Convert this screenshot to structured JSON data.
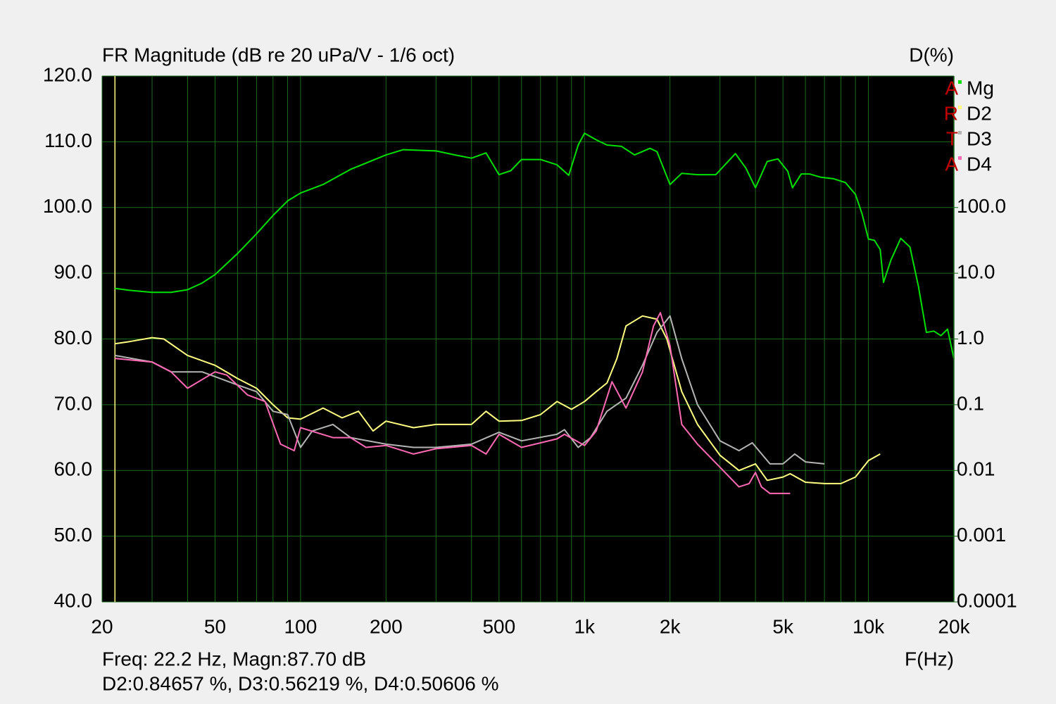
{
  "chart_data": {
    "type": "line",
    "title": "FR Magnitude (dB re 20 uPa/V - 1/6 oct)",
    "y2_label": "D(%)",
    "x_label": "F(Hz)",
    "watermark": "ARTA",
    "annotations": [
      "Freq: 22.2 Hz, Magn:87.70 dB",
      "D2:0.84657 %, D3:0.56219 %, D4:0.50606 %"
    ],
    "cursor_x": 22.2,
    "cursor_color": "#ffff80",
    "xlog": true,
    "y2log": true,
    "grid": true,
    "grid_color": "#1c6b1c",
    "legend": "top-right",
    "xlim": [
      20,
      20000
    ],
    "xticks": [
      20,
      50,
      100,
      200,
      500,
      {
        "value": 1000,
        "label": "1k"
      },
      {
        "value": 2000,
        "label": "2k"
      },
      {
        "value": 5000,
        "label": "5k"
      },
      {
        "value": 10000,
        "label": "10k"
      },
      {
        "value": 20000,
        "label": "20k"
      }
    ],
    "xminor": [
      30,
      40,
      60,
      70,
      80,
      90,
      300,
      400,
      600,
      700,
      800,
      900,
      3000,
      4000,
      6000,
      7000,
      8000,
      9000
    ],
    "ylim": [
      40,
      120
    ],
    "yticks": [
      {
        "value": 40,
        "label": "40.0"
      },
      {
        "value": 50,
        "label": "50.0"
      },
      {
        "value": 60,
        "label": "60.0"
      },
      {
        "value": 70,
        "label": "70.0"
      },
      {
        "value": 80,
        "label": "80.0"
      },
      {
        "value": 90,
        "label": "90.0"
      },
      {
        "value": 100,
        "label": "100.0"
      },
      {
        "value": 110,
        "label": "110.0"
      },
      {
        "value": 120,
        "label": "120.0"
      }
    ],
    "y2lim": [
      0.0001,
      10000
    ],
    "y2ticks": [
      0.0001,
      0.001,
      0.01,
      0.1,
      {
        "value": 1,
        "label": "1.0"
      },
      {
        "value": 10,
        "label": "10.0"
      },
      {
        "value": 100,
        "label": "100.0"
      }
    ],
    "series": [
      {
        "name": "Mg",
        "color": "#00e000",
        "x": [
          22.2,
          25,
          30,
          35,
          40,
          45,
          50,
          60,
          70,
          80,
          90,
          100,
          120,
          150,
          200,
          230,
          300,
          350,
          400,
          450,
          500,
          550,
          600,
          700,
          800,
          880,
          950,
          1000,
          1100,
          1200,
          1350,
          1500,
          1700,
          1800,
          2000,
          2200,
          2500,
          2900,
          3400,
          3700,
          4000,
          4400,
          4800,
          5200,
          5400,
          5800,
          6200,
          6800,
          7500,
          8300,
          9000,
          9500,
          10000,
          10500,
          11000,
          11300,
          12000,
          13000,
          14000,
          15000,
          16000,
          17000,
          18000,
          19000,
          20000
        ],
        "values": [
          87.7,
          87.4,
          87.1,
          87.1,
          87.5,
          88.5,
          89.8,
          93,
          96,
          98.8,
          101,
          102.2,
          103.5,
          105.8,
          108.0,
          108.8,
          108.6,
          108,
          107.5,
          108.3,
          105,
          105.6,
          107.3,
          107.3,
          106.5,
          104.9,
          109.5,
          111.3,
          110.3,
          109.5,
          109.3,
          108,
          109,
          108.5,
          103.5,
          105.2,
          105,
          105,
          108.2,
          106,
          103,
          107,
          107.4,
          105.5,
          103,
          105.1,
          105.1,
          104.6,
          104.4,
          103.8,
          102,
          99,
          95.2,
          95,
          93.6,
          88.6,
          92,
          95.3,
          94,
          88,
          81,
          81.2,
          80.5,
          81.5,
          77
        ]
      },
      {
        "name": "D2",
        "color": "#ffff80",
        "axis": "y2",
        "x": [
          22.2,
          25,
          30,
          33,
          40,
          50,
          60,
          70,
          80,
          90,
          100,
          120,
          140,
          160,
          180,
          200,
          250,
          300,
          350,
          400,
          450,
          500,
          600,
          700,
          800,
          900,
          1000,
          1100,
          1200,
          1300,
          1400,
          1600,
          1800,
          1950,
          2200,
          2500,
          3000,
          3500,
          4000,
          4400,
          5000,
          5300,
          6000,
          7000,
          8000,
          9000,
          10000,
          11000
        ],
        "values": [
          0.847,
          0.912,
          1.047,
          1.0,
          0.562,
          0.398,
          0.251,
          0.178,
          0.1,
          0.0631,
          0.0603,
          0.0891,
          0.0631,
          0.0794,
          0.0398,
          0.0562,
          0.0447,
          0.0501,
          0.0501,
          0.0501,
          0.0794,
          0.0562,
          0.0575,
          0.0708,
          0.112,
          0.0851,
          0.112,
          0.158,
          0.214,
          0.501,
          1.58,
          2.24,
          2.0,
          1.0,
          0.158,
          0.0501,
          0.017,
          0.01,
          0.0126,
          0.00708,
          0.00794,
          0.00891,
          0.00661,
          0.00631,
          0.00631,
          0.00794,
          0.0141,
          0.0178
        ]
      },
      {
        "name": "D3",
        "color": "#b4b4b4",
        "axis": "y2",
        "x": [
          22.2,
          30,
          35,
          45,
          60,
          70,
          80,
          90,
          100,
          110,
          130,
          150,
          200,
          250,
          300,
          400,
          500,
          600,
          800,
          850,
          950,
          1050,
          1200,
          1400,
          1600,
          1800,
          2000,
          2200,
          2500,
          3000,
          3500,
          3900,
          4500,
          5000,
          5500,
          6000,
          7000
        ],
        "values": [
          0.562,
          0.447,
          0.316,
          0.316,
          0.2,
          0.158,
          0.0794,
          0.0708,
          0.0224,
          0.0398,
          0.0501,
          0.0316,
          0.0251,
          0.0224,
          0.0224,
          0.0251,
          0.038,
          0.0282,
          0.0355,
          0.0417,
          0.0224,
          0.0316,
          0.0794,
          0.126,
          0.398,
          1.26,
          2.24,
          0.501,
          0.1,
          0.0282,
          0.02,
          0.0263,
          0.0126,
          0.0126,
          0.0178,
          0.0135,
          0.0126
        ]
      },
      {
        "name": "D4",
        "color": "#ff69b4",
        "axis": "y2",
        "x": [
          22.2,
          30,
          35,
          40,
          50,
          55,
          65,
          75,
          85,
          95,
          100,
          130,
          150,
          170,
          200,
          250,
          300,
          400,
          450,
          500,
          600,
          800,
          850,
          1000,
          1100,
          1250,
          1400,
          1600,
          1750,
          1850,
          2000,
          2200,
          2500,
          3000,
          3500,
          3800,
          4000,
          4200,
          4500,
          5300
        ],
        "values": [
          0.506,
          0.447,
          0.316,
          0.178,
          0.316,
          0.282,
          0.141,
          0.112,
          0.0251,
          0.02,
          0.0447,
          0.0316,
          0.0316,
          0.0224,
          0.024,
          0.0178,
          0.0214,
          0.024,
          0.0178,
          0.0355,
          0.0224,
          0.0302,
          0.0355,
          0.024,
          0.0398,
          0.224,
          0.0891,
          0.316,
          1.58,
          2.51,
          0.794,
          0.0501,
          0.0251,
          0.0112,
          0.00562,
          0.00631,
          0.00933,
          0.00562,
          0.00447,
          0.00447
        ]
      }
    ]
  }
}
